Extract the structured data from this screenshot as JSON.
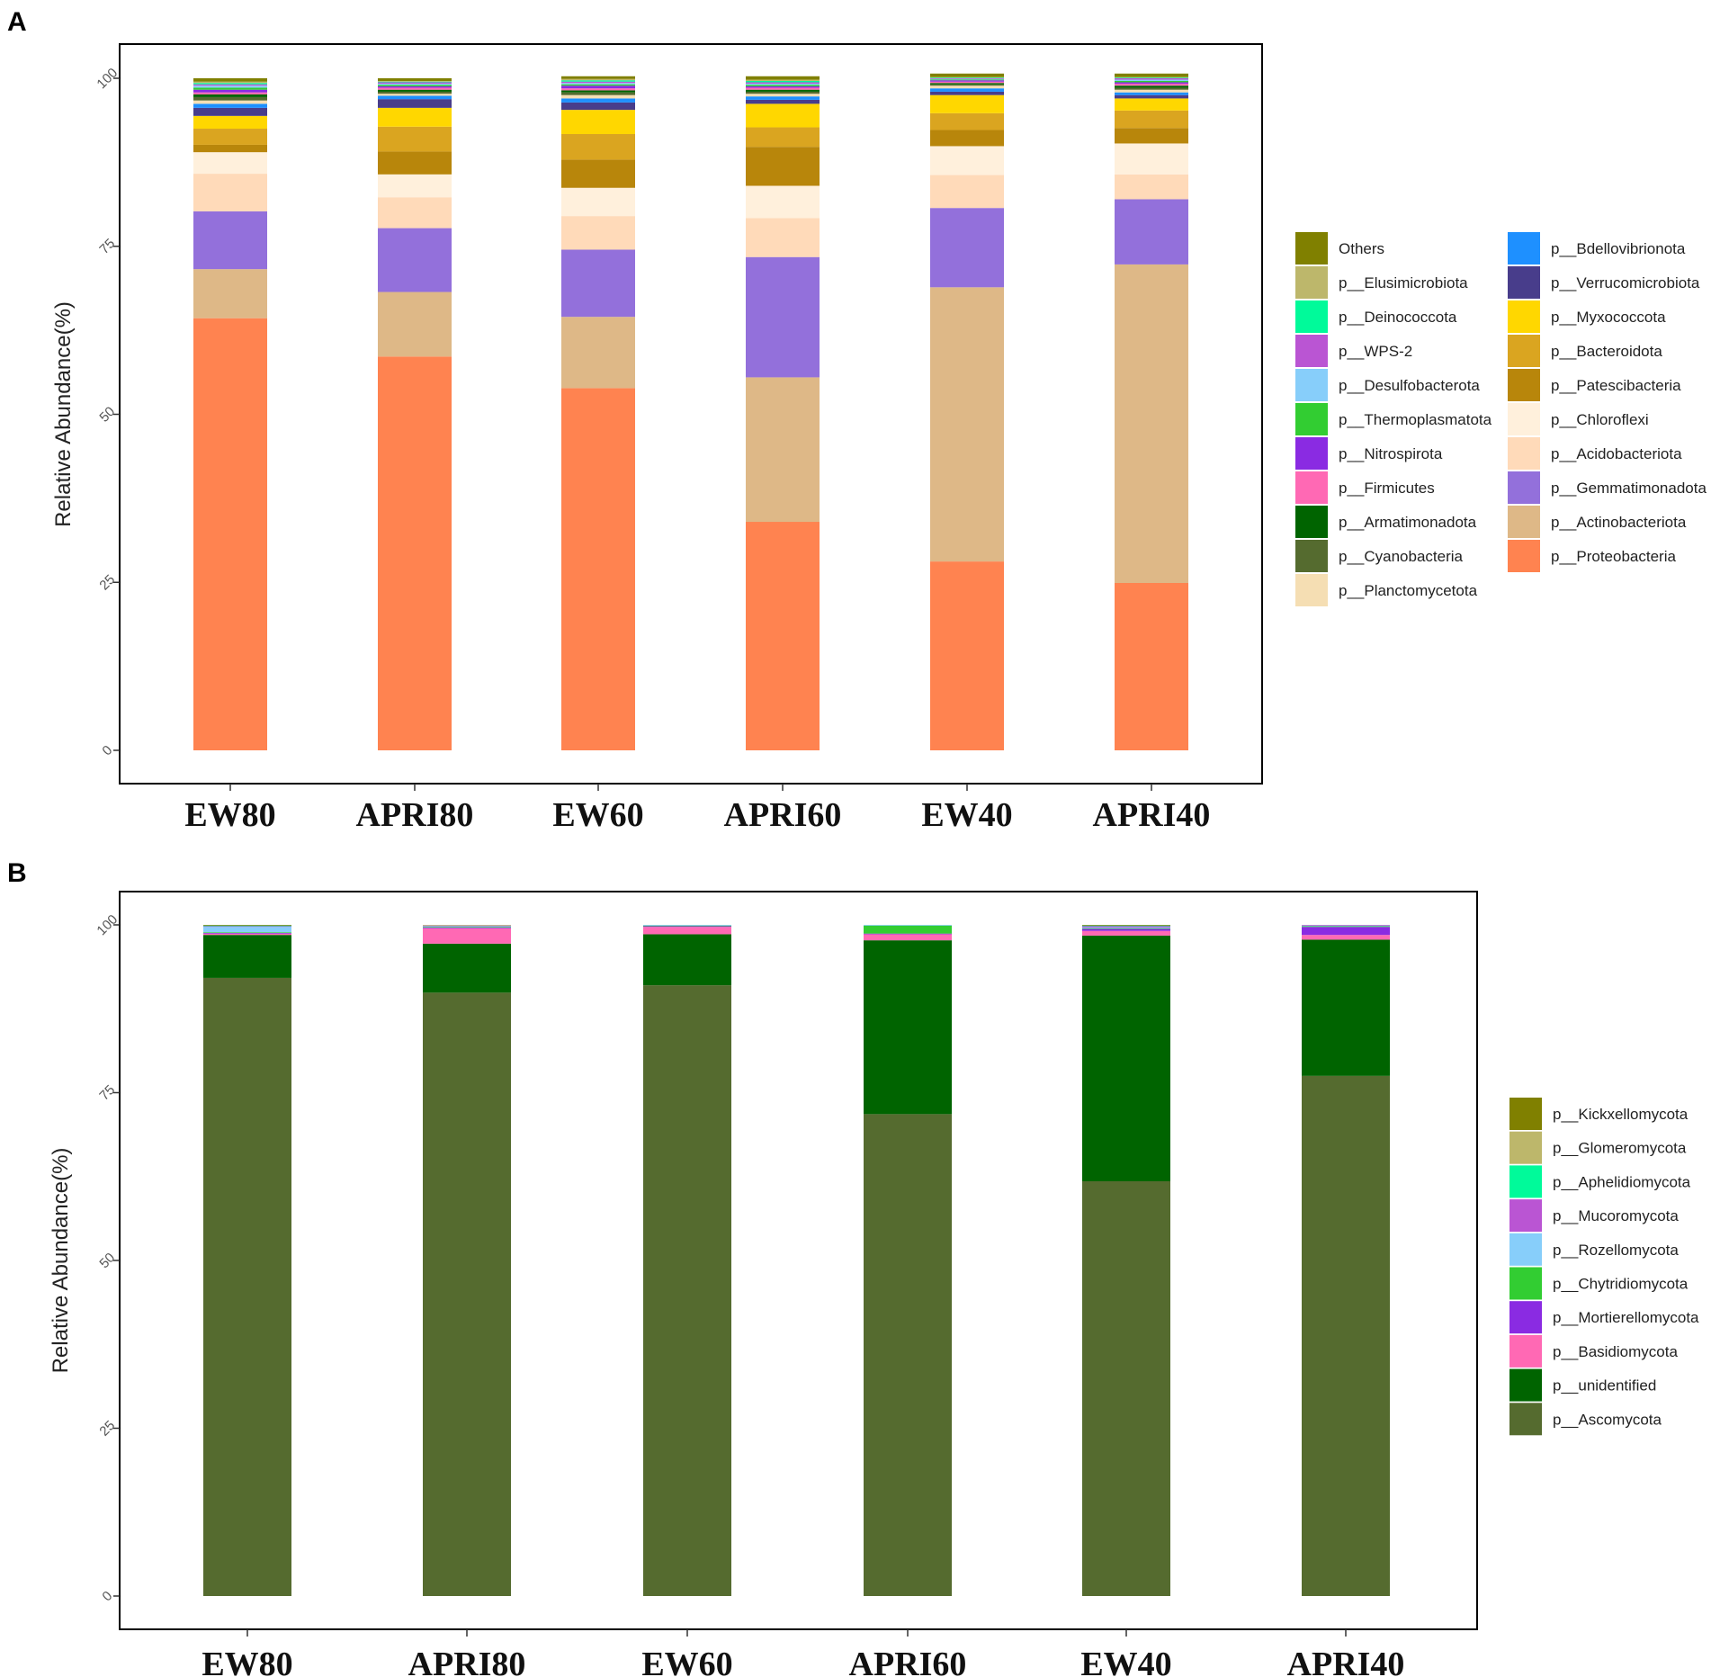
{
  "chart_data": [
    {
      "panel": "A",
      "type": "bar",
      "stacked": true,
      "ylabel": "Relative Abundance(%)",
      "ylim": [
        0,
        100
      ],
      "yticks": [
        0,
        25,
        50,
        75,
        100
      ],
      "categories": [
        "EW80",
        "APRI80",
        "EW60",
        "APRI60",
        "EW40",
        "APRI40"
      ],
      "series": [
        {
          "name": "p__Proteobacteria",
          "color": "#FF8350",
          "values": [
            64.3,
            58.6,
            53.9,
            34.0,
            28.1,
            24.9
          ]
        },
        {
          "name": "p__Actinobacteriota",
          "color": "#DEB887",
          "values": [
            7.3,
            9.6,
            10.6,
            21.5,
            40.8,
            47.4
          ]
        },
        {
          "name": "p__Gemmatimonadota",
          "color": "#9370DB",
          "values": [
            8.6,
            9.5,
            10.0,
            17.9,
            11.8,
            9.7
          ]
        },
        {
          "name": "p__Acidobacteriota",
          "color": "#FFDAB9",
          "values": [
            5.6,
            4.6,
            5.0,
            5.8,
            4.9,
            3.7
          ]
        },
        {
          "name": "p__Chloroflexi",
          "color": "#FFF0DC",
          "values": [
            3.2,
            3.4,
            4.2,
            4.8,
            4.3,
            4.6
          ]
        },
        {
          "name": "p__Patescibacteria",
          "color": "#B8860B",
          "values": [
            1.1,
            3.4,
            4.2,
            5.8,
            2.4,
            2.3
          ]
        },
        {
          "name": "p__Bacteroidota",
          "color": "#DAA520",
          "values": [
            2.4,
            3.7,
            3.8,
            2.9,
            2.5,
            2.6
          ]
        },
        {
          "name": "p__Myxococcota",
          "color": "#FFD700",
          "values": [
            1.9,
            2.8,
            3.6,
            3.5,
            2.7,
            1.8
          ]
        },
        {
          "name": "p__Verrucomicrobiota",
          "color": "#483D8B",
          "values": [
            1.2,
            1.3,
            1.1,
            0.6,
            0.5,
            0.5
          ]
        },
        {
          "name": "p__Bdellovibrionota",
          "color": "#1E90FF",
          "values": [
            0.6,
            0.5,
            0.6,
            0.5,
            0.5,
            0.4
          ]
        },
        {
          "name": "p__Planctomycetota",
          "color": "#F5DEB3",
          "values": [
            0.5,
            0.3,
            0.5,
            0.4,
            0.4,
            0.4
          ]
        },
        {
          "name": "p__Cyanobacteria",
          "color": "#556B2F",
          "values": [
            0.5,
            0.3,
            0.4,
            0.3,
            0.2,
            0.3
          ]
        },
        {
          "name": "p__Armatimonadota",
          "color": "#006400",
          "values": [
            0.4,
            0.3,
            0.3,
            0.3,
            0.2,
            0.3
          ]
        },
        {
          "name": "p__Firmicutes",
          "color": "#FF69B4",
          "values": [
            0.3,
            0.3,
            0.3,
            0.3,
            0.2,
            0.3
          ]
        },
        {
          "name": "p__Nitrospirota",
          "color": "#8A2BE2",
          "values": [
            0.4,
            0.2,
            0.4,
            0.2,
            0.2,
            0.2
          ]
        },
        {
          "name": "p__Thermoplasmatota",
          "color": "#32CD32",
          "values": [
            0.3,
            0.2,
            0.2,
            0.2,
            0.1,
            0.2
          ]
        },
        {
          "name": "p__Desulfobacterota",
          "color": "#87CEFA",
          "values": [
            0.3,
            0.2,
            0.2,
            0.2,
            0.1,
            0.2
          ]
        },
        {
          "name": "p__WPS-2",
          "color": "#BA55D3",
          "values": [
            0.2,
            0.2,
            0.2,
            0.2,
            0.1,
            0.2
          ]
        },
        {
          "name": "p__Deinococcota",
          "color": "#00FA9A",
          "values": [
            0.2,
            0.1,
            0.2,
            0.2,
            0.1,
            0.1
          ]
        },
        {
          "name": "p__Elusimicrobiota",
          "color": "#BDB76B",
          "values": [
            0.2,
            0.1,
            0.2,
            0.2,
            0.1,
            0.1
          ]
        },
        {
          "name": "Others",
          "color": "#808000",
          "values": [
            0.5,
            0.4,
            0.4,
            0.5,
            0.5,
            0.5
          ]
        }
      ],
      "legend": {
        "columns": [
          [
            "Others",
            "p__Elusimicrobiota",
            "p__Deinococcota",
            "p__WPS-2",
            "p__Desulfobacterota",
            "p__Thermoplasmatota",
            "p__Nitrospirota",
            "p__Firmicutes",
            "p__Armatimonadota",
            "p__Cyanobacteria",
            "p__Planctomycetota"
          ],
          [
            "p__Bdellovibrionota",
            "p__Verrucomicrobiota",
            "p__Myxococcota",
            "p__Bacteroidota",
            "p__Patescibacteria",
            "p__Chloroflexi",
            "p__Acidobacteriota",
            "p__Gemmatimonadota",
            "p__Actinobacteriota",
            "p__Proteobacteria"
          ]
        ]
      }
    },
    {
      "panel": "B",
      "type": "bar",
      "stacked": true,
      "ylabel": "Relative Abundance(%)",
      "ylim": [
        0,
        100
      ],
      "yticks": [
        0,
        25,
        50,
        75,
        100
      ],
      "categories": [
        "EW80",
        "APRI80",
        "EW60",
        "APRI60",
        "EW40",
        "APRI40"
      ],
      "series": [
        {
          "name": "p__Ascomycota",
          "color": "#556B2F",
          "values": [
            92.1,
            89.9,
            91.0,
            71.8,
            61.8,
            77.5
          ]
        },
        {
          "name": "p__unidentified",
          "color": "#006400",
          "values": [
            6.4,
            7.3,
            7.6,
            25.9,
            36.6,
            20.3
          ]
        },
        {
          "name": "p__Basidiomycota",
          "color": "#FF69B4",
          "values": [
            0.2,
            2.3,
            1.1,
            0.9,
            0.7,
            0.7
          ]
        },
        {
          "name": "p__Mortierellomycota",
          "color": "#8A2BE2",
          "values": [
            0.1,
            0.1,
            0.1,
            0.1,
            0.3,
            1.2
          ]
        },
        {
          "name": "p__Chytridiomycota",
          "color": "#32CD32",
          "values": [
            0.1,
            0.1,
            0.1,
            1.2,
            0.1,
            0.1
          ]
        },
        {
          "name": "p__Rozellomycota",
          "color": "#87CEFA",
          "values": [
            0.8,
            0.1,
            0.1,
            0.1,
            0.1,
            0.1
          ]
        },
        {
          "name": "p__Mucoromycota",
          "color": "#BA55D3",
          "values": [
            0.1,
            0.1,
            0.0,
            0.0,
            0.2,
            0.1
          ]
        },
        {
          "name": "p__Aphelidiomycota",
          "color": "#00FA9A",
          "values": [
            0.1,
            0.0,
            0.0,
            0.0,
            0.1,
            0.0
          ]
        },
        {
          "name": "p__Glomeromycota",
          "color": "#BDB76B",
          "values": [
            0.0,
            0.1,
            0.0,
            0.0,
            0.0,
            0.0
          ]
        },
        {
          "name": "p__Kickxellomycota",
          "color": "#808000",
          "values": [
            0.1,
            0.0,
            0.0,
            0.0,
            0.1,
            0.0
          ]
        }
      ],
      "legend": {
        "columns": [
          [
            "p__Kickxellomycota",
            "p__Glomeromycota",
            "p__Aphelidiomycota",
            "p__Mucoromycota",
            "p__Rozellomycota",
            "p__Chytridiomycota",
            "p__Mortierellomycota",
            "p__Basidiomycota",
            "p__unidentified",
            "p__Ascomycota"
          ]
        ]
      }
    }
  ]
}
